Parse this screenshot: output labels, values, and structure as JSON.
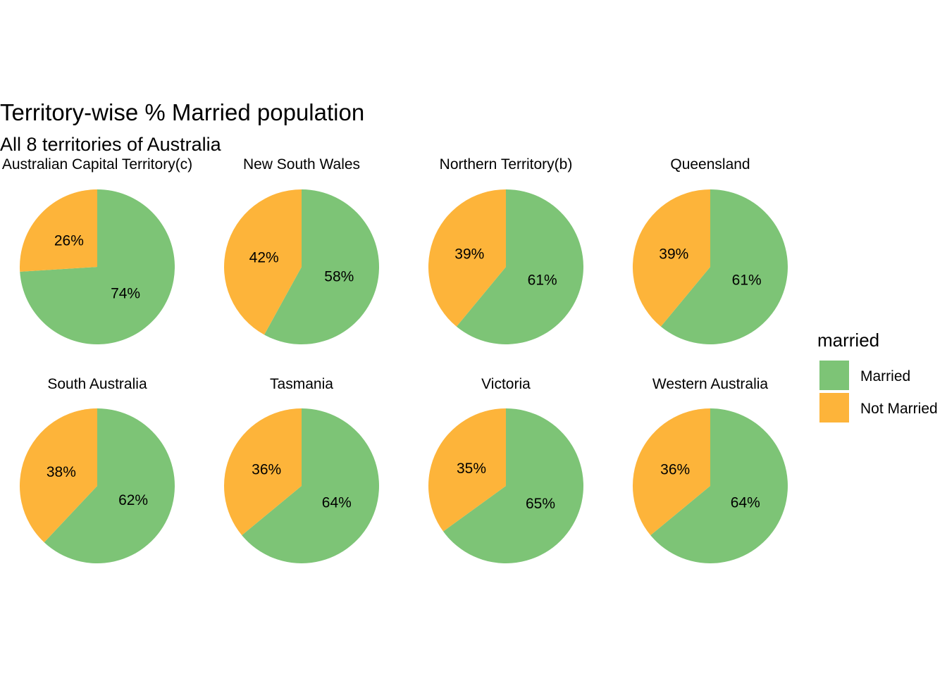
{
  "chart_data": {
    "type": "pie",
    "title": "Territory-wise % Married population",
    "subtitle": "All 8 territories of Australia",
    "legend": {
      "title": "married",
      "position": "right",
      "items": [
        {
          "label": "Married",
          "color": "#7DC476"
        },
        {
          "label": "Not Married",
          "color": "#FDB43A"
        }
      ]
    },
    "facets": [
      {
        "label": "Australian Capital Territory(c)",
        "married": 74,
        "not_married": 26,
        "married_label": "74%",
        "not_married_label": "26%"
      },
      {
        "label": "New South Wales",
        "married": 58,
        "not_married": 42,
        "married_label": "58%",
        "not_married_label": "42%"
      },
      {
        "label": "Northern Territory(b)",
        "married": 61,
        "not_married": 39,
        "married_label": "61%",
        "not_married_label": "39%"
      },
      {
        "label": "Queensland",
        "married": 61,
        "not_married": 39,
        "married_label": "61%",
        "not_married_label": "39%"
      },
      {
        "label": "South Australia",
        "married": 62,
        "not_married": 38,
        "married_label": "62%",
        "not_married_label": "38%"
      },
      {
        "label": "Tasmania",
        "married": 64,
        "not_married": 36,
        "married_label": "64%",
        "not_married_label": "36%"
      },
      {
        "label": "Victoria",
        "married": 65,
        "not_married": 35,
        "married_label": "65%",
        "not_married_label": "35%"
      },
      {
        "label": "Western Australia",
        "married": 64,
        "not_married": 36,
        "married_label": "64%",
        "not_married_label": "36%"
      }
    ]
  }
}
